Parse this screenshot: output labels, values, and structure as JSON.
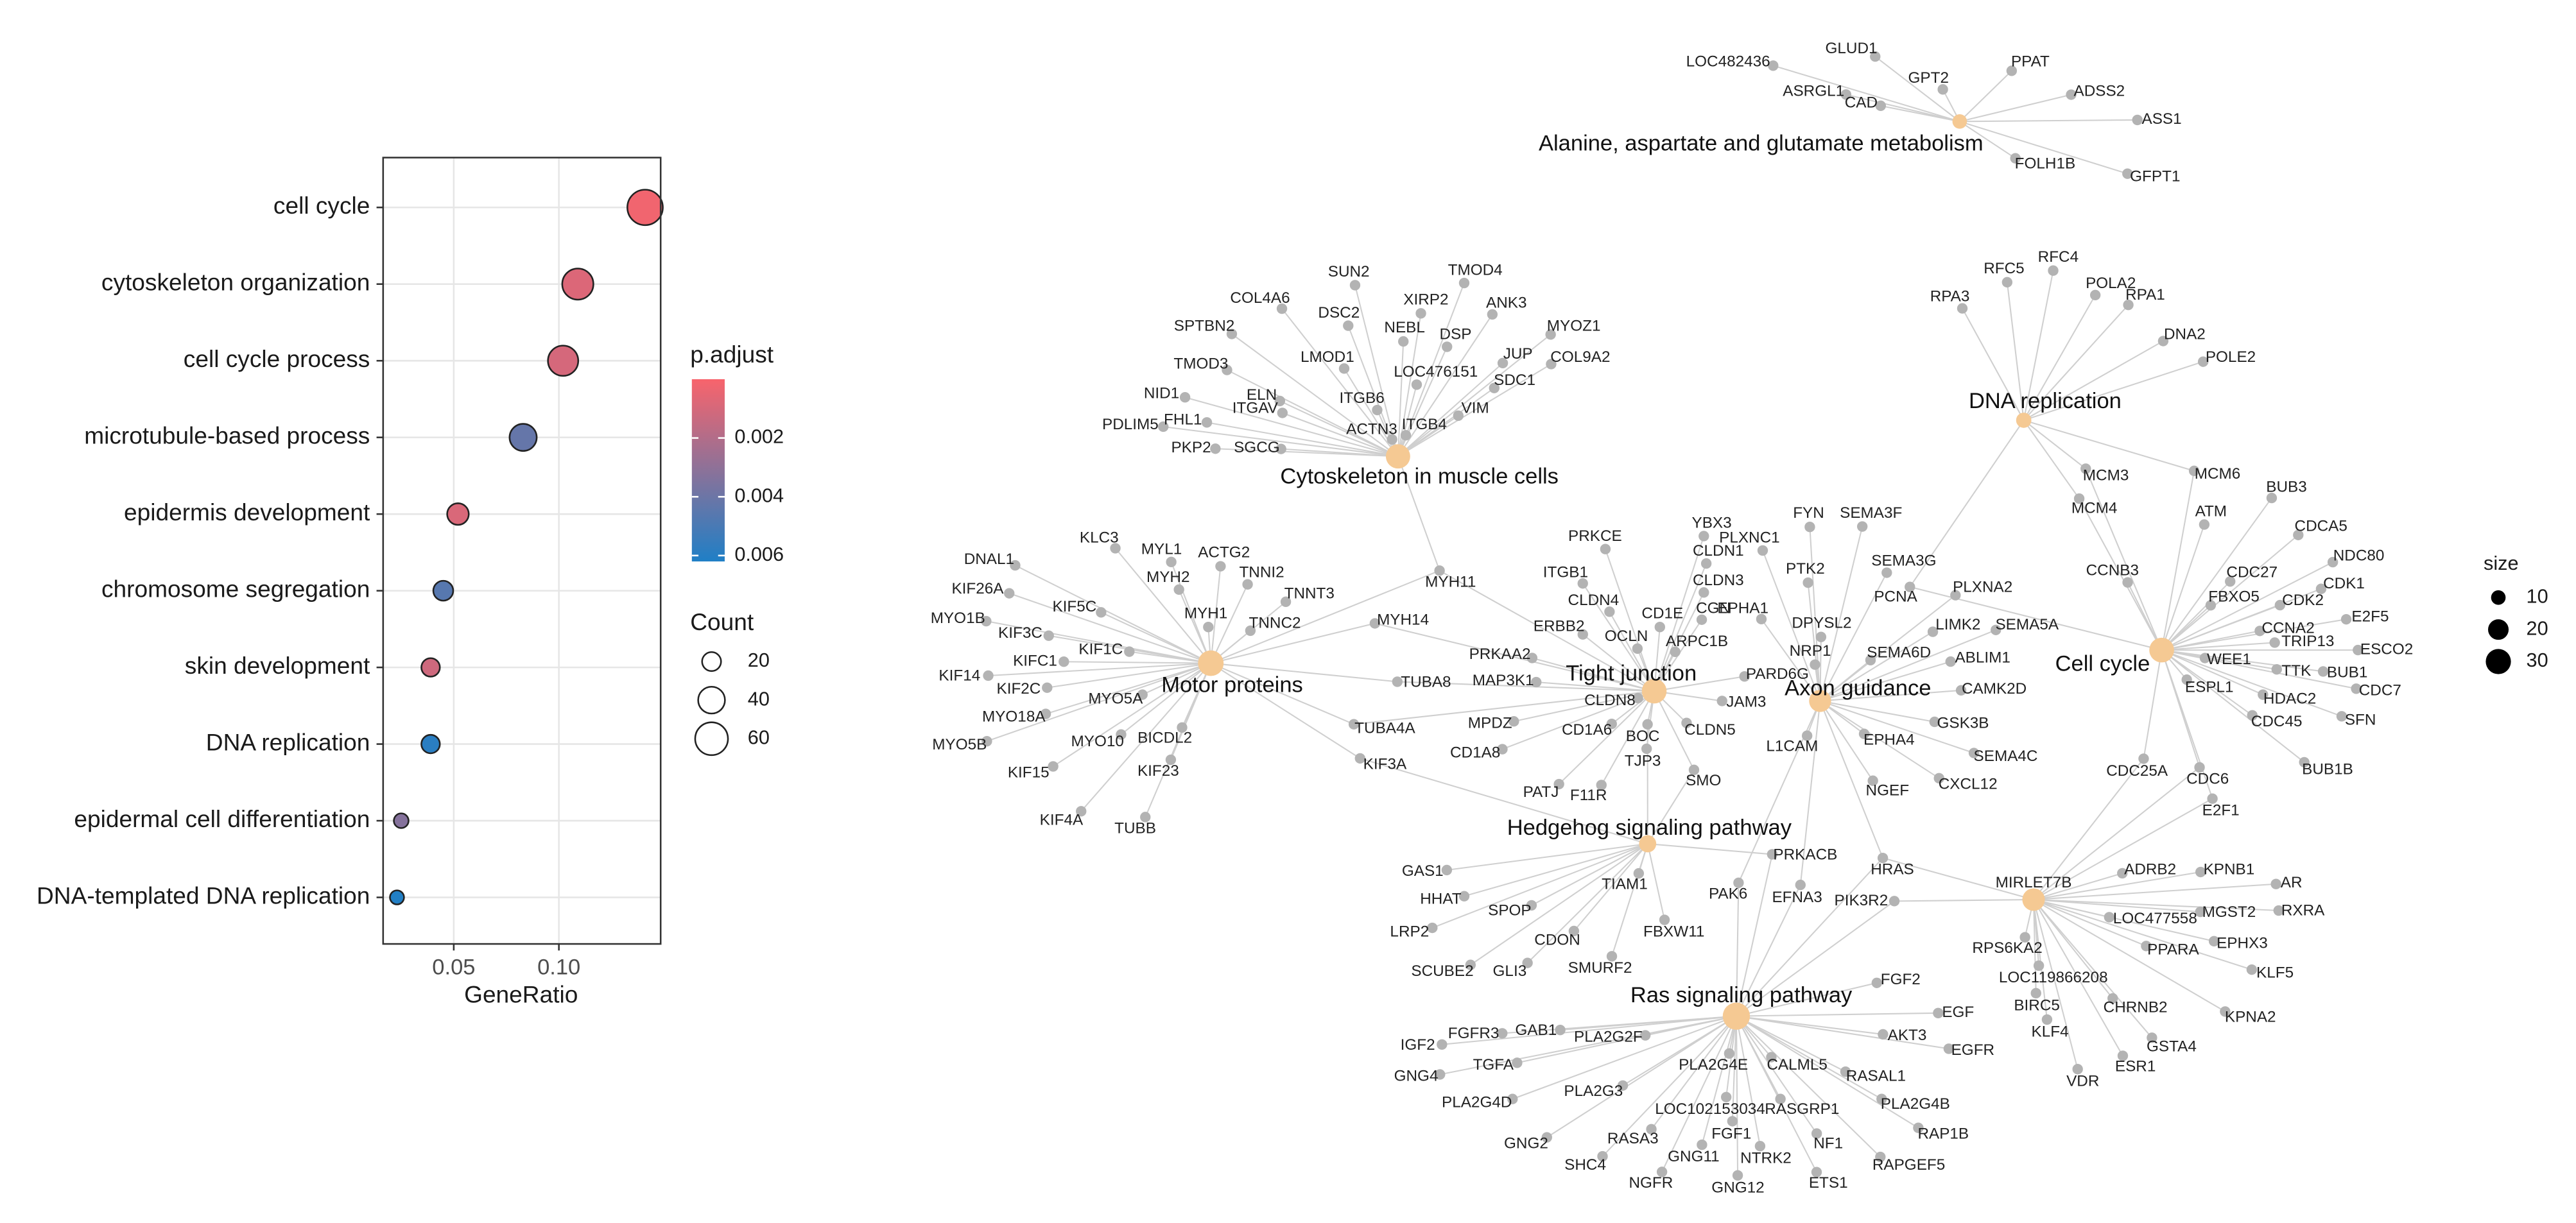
{
  "chart_data": {
    "type": "dot",
    "categories": [
      "cell cycle",
      "cytoskeleton organization",
      "cell cycle process",
      "microtubule-based process",
      "epidermis development",
      "chromosome segregation",
      "skin development",
      "DNA replication",
      "epidermal cell differentiation",
      "DNA-templated DNA replication"
    ],
    "values": [
      0.141,
      0.109,
      0.102,
      0.083,
      0.052,
      0.045,
      0.039,
      0.039,
      0.025,
      0.023
    ],
    "sizes": [
      70,
      54,
      51,
      41,
      26,
      22,
      19,
      19,
      12,
      11
    ],
    "color_values": [
      0.0002,
      0.0008,
      0.001,
      0.0042,
      0.0009,
      0.0046,
      0.0012,
      0.0059,
      0.0033,
      0.0061
    ],
    "xlabel": "GeneRatio",
    "xlim": [
      0.0164,
      0.1484
    ],
    "xticks": [
      0.05,
      {
        "value": 0.1,
        "label": "0.10"
      }
    ],
    "grid": true,
    "color_legend": {
      "title": "p.adjust",
      "lim": [
        0,
        0.0062
      ],
      "ticks": [
        0.002,
        0.004,
        0.006
      ],
      "colors": [
        "#f8646c",
        "#1f7fc6"
      ]
    },
    "size_legend": {
      "title": "Count",
      "ticks": [
        20,
        40,
        60
      ]
    }
  },
  "network": {
    "pathways": [
      {
        "name": "Alanine, aspartate and glutamate metabolism",
        "genes": [
          "LOC482436",
          "GLUD1",
          "ASRGL1",
          "CAD",
          "GPT2",
          "PPAT",
          "ADSS2",
          "ASS1",
          "FOLH1B",
          "GFPT1"
        ]
      },
      {
        "name": "DNA replication",
        "genes": [
          "RPA3",
          "RFC5",
          "RFC4",
          "POLA2",
          "RPA1",
          "DNA2",
          "POLE2",
          "MCM3",
          "MCM4",
          "MCM6",
          "PCNA"
        ]
      },
      {
        "name": "Cytoskeleton in muscle cells",
        "genes": [
          "SUN2",
          "TMOD4",
          "COL4A6",
          "XIRP2",
          "ANK3",
          "DSC2",
          "SPTBN2",
          "NEBL",
          "DSP",
          "MYOZ1",
          "JUP",
          "LMOD1",
          "COL9A2",
          "TMOD3",
          "LOC476151",
          "SDC1",
          "NID1",
          "ELN",
          "ITGB6",
          "ITGAV",
          "VIM",
          "FHL1",
          "PDLIM5",
          "ITGB4",
          "ACTN3",
          "PKP2",
          "SGCG",
          "MYH11"
        ]
      },
      {
        "name": "Motor proteins",
        "genes": [
          "KLC3",
          "MYL1",
          "ACTG2",
          "DNAL1",
          "TNNI2",
          "MYH2",
          "KIF26A",
          "TNNT3",
          "KIF5C",
          "MYH1",
          "TNNC2",
          "MYO1B",
          "KIF3C",
          "KIF1C",
          "KIFC1",
          "KIF14",
          "KIF2C",
          "MYO5A",
          "MYO18A",
          "BICDL2",
          "MYO10",
          "MYO5B",
          "KIF15",
          "KIF23",
          "KIF4A",
          "TUBB",
          "MYH11",
          "MYH14",
          "TUBA8",
          "TUBA4A",
          "KIF3A"
        ]
      },
      {
        "name": "Tight junction",
        "genes": [
          "PRKCE",
          "YBX3",
          "CLDN1",
          "ITGB1",
          "CLDN3",
          "CLDN4",
          "CD1E",
          "CGN",
          "ERBB2",
          "OCLN",
          "ARPC1B",
          "PRKAA2",
          "PARD6G",
          "MAP3K1",
          "CLDN8",
          "JAM3",
          "MPDZ",
          "CD1A6",
          "CLDN5",
          "BOC",
          "CD1A8",
          "TJP3",
          "SMO",
          "PATJ",
          "F11R",
          "MYH11",
          "MYH14",
          "TUBA8",
          "TUBA4A"
        ]
      },
      {
        "name": "Axon guidance",
        "genes": [
          "FYN",
          "SEMA3F",
          "PLXNC1",
          "PTK2",
          "SEMA3G",
          "EPHA1",
          "PLXNA2",
          "DPYSL2",
          "LIMK2",
          "SEMA5A",
          "NRP1",
          "SEMA6D",
          "ABLIM1",
          "CAMK2D",
          "GSK3B",
          "EPHA4",
          "L1CAM",
          "SEMA4C",
          "CXCL12",
          "NGEF",
          "PAK6",
          "EFNA3",
          "HRAS"
        ]
      },
      {
        "name": "Cell cycle",
        "genes": [
          "MCM3",
          "MCM4",
          "MCM6",
          "PCNA",
          "BUB3",
          "ATM",
          "CDCA5",
          "NDC80",
          "CCNB3",
          "CDC27",
          "CDK1",
          "FBXO5",
          "CDK2",
          "E2F5",
          "CCNA2",
          "TRIP13",
          "ESCO2",
          "WEE1",
          "TTK",
          "BUB1",
          "ESPL1",
          "CDC7",
          "HDAC2",
          "SFN",
          "CDC45",
          "BUB1B",
          "CDC25A",
          "CDC6",
          "E2F1"
        ]
      },
      {
        "name": "Hedgehog signaling pathway",
        "genes": [
          "GAS1",
          "HHAT",
          "TIAM1",
          "SPOP",
          "LRP2",
          "FBXW11",
          "CDON",
          "SMURF2",
          "SCUBE2",
          "GLI3",
          "PRKACB",
          "BOC",
          "SMO",
          "KIF3A"
        ]
      },
      {
        "name": null,
        "genes": [
          "MIRLET7B",
          "ADRB2",
          "KPNB1",
          "AR",
          "PIK3R2",
          "RXRA",
          "MGST2",
          "LOC477558",
          "EPHX3",
          "RPS6KA2",
          "PPARA",
          "KLF5",
          "LOC119866208",
          "BIRC5",
          "CHRNB2",
          "KPNA2",
          "KLF4",
          "GSTA4",
          "ESR1",
          "VDR",
          "HRAS",
          "CDC25A",
          "CDC6",
          "E2F1"
        ]
      },
      {
        "name": "Ras signaling pathway",
        "genes": [
          "FGF2",
          "EGF",
          "AKT3",
          "EGFR",
          "FGFR3",
          "GAB1",
          "PLA2G2F",
          "IGF2",
          "TGFA",
          "PLA2G4E",
          "CALML5",
          "GNG4",
          "RASAL1",
          "PLA2G3",
          "PLA2G4B",
          "PLA2G4D",
          "LOC102153034",
          "RASGRP1",
          "RASA3",
          "FGF1",
          "RAP1B",
          "GNG2",
          "NF1",
          "GNG11",
          "NTRK2",
          "SHC4",
          "RAPGEF5",
          "NGFR",
          "ETS1",
          "GNG12",
          "PRKACB",
          "PAK6",
          "EFNA3",
          "HRAS",
          "PIK3R2"
        ]
      }
    ],
    "size_legend": {
      "title": "size",
      "values": [
        10,
        20,
        30
      ]
    }
  }
}
